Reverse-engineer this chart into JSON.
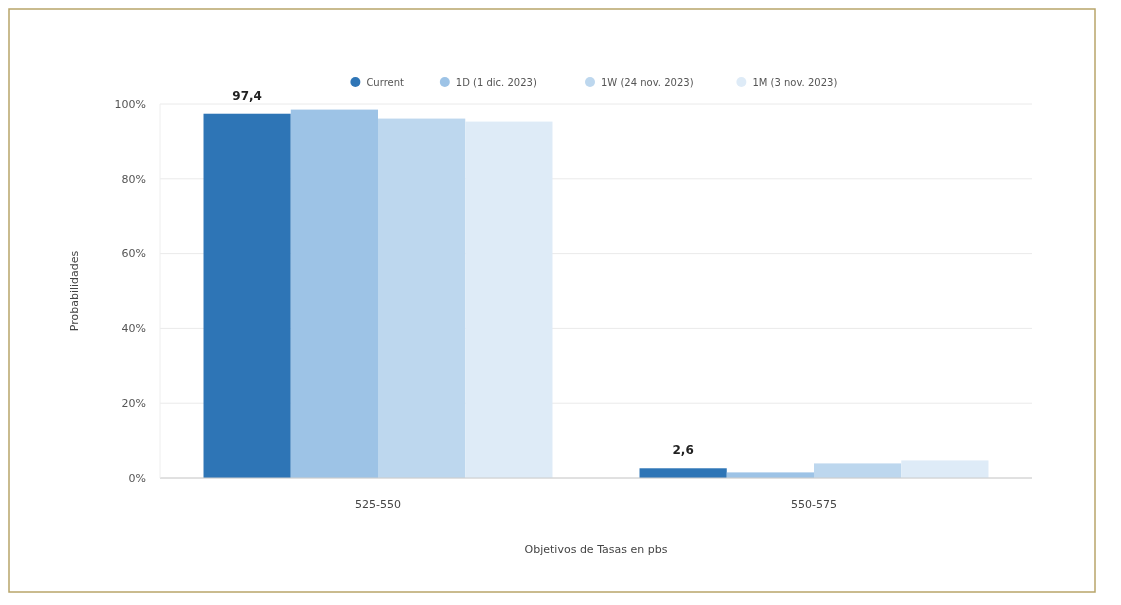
{
  "chart_data": {
    "type": "bar",
    "xlabel": "Objetivos de Tasas en pbs",
    "ylabel": "Probabilidades",
    "categories": [
      "525-550",
      "550-575"
    ],
    "series": [
      {
        "name": "Current",
        "color": "#2e75b6",
        "values": [
          97.4,
          2.6
        ],
        "value_labels": [
          "97,4",
          "2,6"
        ]
      },
      {
        "name": "1D (1 dic. 2023)",
        "color": "#9dc3e6",
        "values": [
          98.5,
          1.5
        ]
      },
      {
        "name": "1W (24 nov. 2023)",
        "color": "#bdd7ee",
        "values": [
          96.1,
          3.9
        ]
      },
      {
        "name": "1M (3 nov. 2023)",
        "color": "#deebf7",
        "values": [
          95.3,
          4.7
        ]
      }
    ],
    "ylim": [
      0,
      100
    ],
    "yticks": [
      {
        "value": 0,
        "label": "0%"
      },
      {
        "value": 20,
        "label": "20%"
      },
      {
        "value": 40,
        "label": "40%"
      },
      {
        "value": 60,
        "label": "60%"
      },
      {
        "value": 80,
        "label": "80%"
      },
      {
        "value": 100,
        "label": "100%"
      }
    ],
    "grid": "y",
    "legend": "top"
  }
}
